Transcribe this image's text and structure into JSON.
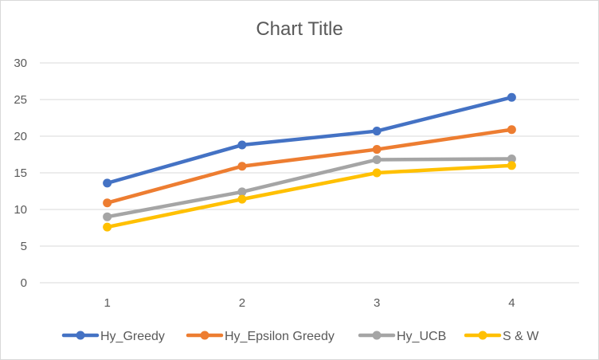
{
  "chart_data": {
    "type": "line",
    "title": "Chart Title",
    "xlabel": "",
    "ylabel": "",
    "categories": [
      "1",
      "2",
      "3",
      "4"
    ],
    "ylim": [
      0,
      30
    ],
    "yticks": [
      "0",
      "5",
      "10",
      "15",
      "20",
      "25",
      "30"
    ],
    "grid": true,
    "legend_position": "bottom",
    "series": [
      {
        "name": "Hy_Greedy",
        "color": "#4472c4",
        "values": [
          13.6,
          18.8,
          20.7,
          25.3
        ]
      },
      {
        "name": "Hy_Epsilon Greedy",
        "color": "#ed7d31",
        "values": [
          10.9,
          15.9,
          18.2,
          20.9
        ]
      },
      {
        "name": "Hy_UCB",
        "color": "#a5a5a5",
        "values": [
          9.0,
          12.4,
          16.8,
          16.9
        ]
      },
      {
        "name": "S & W",
        "color": "#ffc000",
        "values": [
          7.6,
          11.4,
          15.0,
          16.0
        ]
      }
    ]
  }
}
